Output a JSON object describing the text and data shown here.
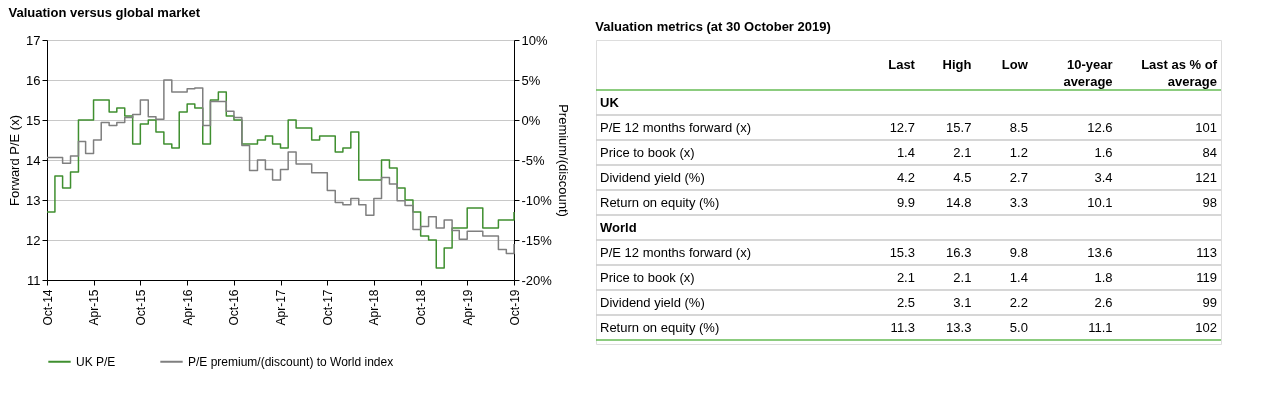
{
  "chart_data": [
    {
      "type": "step",
      "title": "Valuation versus global market",
      "ylabel": "Forward P/E (x)",
      "y2label": "Premium/(discount)",
      "xlim": [
        "2014-10",
        "2019-10"
      ],
      "xticks": [
        {
          "value": "2014-10",
          "label": "Oct-14"
        },
        {
          "value": "2015-04",
          "label": "Apr-15"
        },
        {
          "value": "2015-10",
          "label": "Oct-15"
        },
        {
          "value": "2016-04",
          "label": "Apr-16"
        },
        {
          "value": "2016-10",
          "label": "Oct-16"
        },
        {
          "value": "2017-04",
          "label": "Apr-17"
        },
        {
          "value": "2017-10",
          "label": "Oct-17"
        },
        {
          "value": "2018-04",
          "label": "Apr-18"
        },
        {
          "value": "2018-10",
          "label": "Oct-18"
        },
        {
          "value": "2019-04",
          "label": "Apr-19"
        },
        {
          "value": "2019-10",
          "label": "Oct-19"
        }
      ],
      "ylim": [
        11,
        17
      ],
      "yticks": [
        11,
        12,
        13,
        14,
        15,
        16,
        17
      ],
      "y2lim": [
        -20,
        10
      ],
      "y2ticks": [
        {
          "value": -20,
          "label": "-20%"
        },
        {
          "value": -15,
          "label": "-15%"
        },
        {
          "value": -10,
          "label": "-10%"
        },
        {
          "value": -5,
          "label": "-5%"
        },
        {
          "value": 0,
          "label": "0%"
        },
        {
          "value": 5,
          "label": "5%"
        },
        {
          "value": 10,
          "label": "10%"
        }
      ],
      "grid": "y",
      "legend": "bottom",
      "series": [
        {
          "name": "UK P/E",
          "color": "#3f8f2f",
          "x": [
            "2014-10",
            "2014-11",
            "2014-12",
            "2015-01",
            "2015-02",
            "2015-04",
            "2015-06",
            "2015-07",
            "2015-08",
            "2015-09",
            "2015-10",
            "2015-11",
            "2015-12",
            "2016-01",
            "2016-02",
            "2016-03",
            "2016-04",
            "2016-05",
            "2016-06",
            "2016-07",
            "2016-08",
            "2016-09",
            "2016-10",
            "2016-11",
            "2017-01",
            "2017-02",
            "2017-03",
            "2017-04",
            "2017-05",
            "2017-06",
            "2017-08",
            "2017-09",
            "2017-11",
            "2017-12",
            "2018-01",
            "2018-02",
            "2018-05",
            "2018-06",
            "2018-07",
            "2018-08",
            "2018-09",
            "2018-10",
            "2018-11",
            "2018-12",
            "2019-01",
            "2019-02",
            "2019-04",
            "2019-06",
            "2019-08",
            "2019-10"
          ],
          "values": [
            12.7,
            13.6,
            13.3,
            13.7,
            15.0,
            15.5,
            15.2,
            15.3,
            15.1,
            14.4,
            14.9,
            15.0,
            14.7,
            14.4,
            14.3,
            15.2,
            15.4,
            15.3,
            14.4,
            15.5,
            15.7,
            15.1,
            15.0,
            14.4,
            14.5,
            14.6,
            14.4,
            14.3,
            15.0,
            14.8,
            14.5,
            14.6,
            14.2,
            14.3,
            14.7,
            13.5,
            14.0,
            13.8,
            13.3,
            13.0,
            12.7,
            12.1,
            12.0,
            11.3,
            11.8,
            12.3,
            12.8,
            12.3,
            12.5,
            12.7
          ]
        },
        {
          "name": "P/E premium/(discount) to World index",
          "color": "#7f7f7f",
          "axis": "y2",
          "x": [
            "2014-10",
            "2014-12",
            "2015-01",
            "2015-02",
            "2015-03",
            "2015-04",
            "2015-05",
            "2015-06",
            "2015-07",
            "2015-08",
            "2015-09",
            "2015-10",
            "2015-11",
            "2015-12",
            "2016-01",
            "2016-02",
            "2016-04",
            "2016-05",
            "2016-06",
            "2016-07",
            "2016-09",
            "2016-10",
            "2016-11",
            "2016-12",
            "2017-01",
            "2017-02",
            "2017-03",
            "2017-04",
            "2017-05",
            "2017-06",
            "2017-08",
            "2017-10",
            "2017-11",
            "2017-12",
            "2018-01",
            "2018-02",
            "2018-03",
            "2018-04",
            "2018-05",
            "2018-06",
            "2018-07",
            "2018-08",
            "2018-09",
            "2018-10",
            "2018-11",
            "2018-12",
            "2019-01",
            "2019-02",
            "2019-03",
            "2019-04",
            "2019-06",
            "2019-08",
            "2019-09",
            "2019-10"
          ],
          "values": [
            -4.7,
            -5.4,
            -4.5,
            -2.7,
            -4.2,
            -2.5,
            -0.3,
            -0.7,
            -0.3,
            0.3,
            0.7,
            2.5,
            0.4,
            0.1,
            5.0,
            3.5,
            3.9,
            4.0,
            -0.7,
            2.3,
            1.1,
            0.3,
            -3.2,
            -6.3,
            -5.0,
            -6.2,
            -7.5,
            -6.2,
            -4.0,
            -5.5,
            -6.6,
            -8.8,
            -10.3,
            -10.6,
            -9.8,
            -10.6,
            -11.9,
            -9.8,
            -7.2,
            -8.0,
            -10.1,
            -10.7,
            -13.7,
            -13.3,
            -12.1,
            -13.5,
            -12.5,
            -13.8,
            -14.9,
            -13.9,
            -14.5,
            -16.2,
            -16.7,
            -15.5
          ]
        }
      ]
    },
    {
      "type": "other",
      "title": "Valuation metrics (at 30 October 2019)",
      "categories": [
        "Last",
        "High",
        "Low",
        "10-year average",
        "Last as % of average"
      ],
      "y_categories": [
        "UK",
        "P/E 12 months forward (x)",
        "Price to book (x)",
        "Dividend yield (%)",
        "Return on equity (%)",
        "World",
        "P/E 12 months forward (x)",
        "Price to book (x)",
        "Dividend yield (%)",
        "Return on equity (%)"
      ],
      "cell_labels": [
        [
          null,
          null,
          null,
          null,
          null
        ],
        [
          "12.7",
          "15.7",
          "8.5",
          "12.6",
          "101"
        ],
        [
          "1.4",
          "2.1",
          "1.2",
          "1.6",
          "84"
        ],
        [
          "4.2",
          "4.5",
          "2.7",
          "3.4",
          "121"
        ],
        [
          "9.9",
          "14.8",
          "3.3",
          "10.1",
          "98"
        ],
        [
          null,
          null,
          null,
          null,
          null
        ],
        [
          "15.3",
          "16.3",
          "9.8",
          "13.6",
          "113"
        ],
        [
          "2.1",
          "2.1",
          "1.4",
          "1.8",
          "119"
        ],
        [
          "2.5",
          "3.1",
          "2.2",
          "2.6",
          "99"
        ],
        [
          "11.3",
          "13.3",
          "5.0",
          "11.1",
          "102"
        ]
      ]
    }
  ]
}
